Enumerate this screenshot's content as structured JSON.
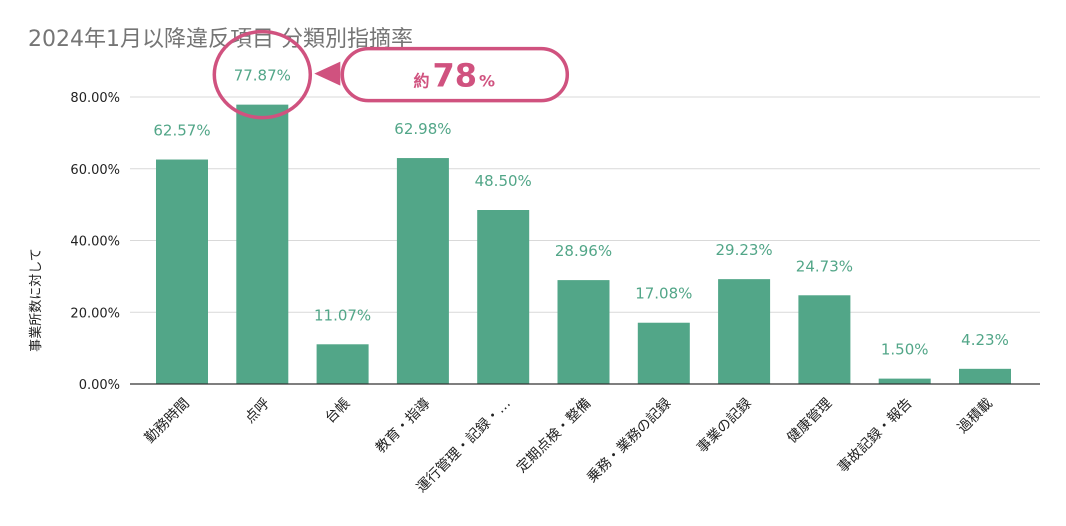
{
  "chart_data": {
    "type": "bar",
    "title": "2024年1月以降違反項目 分類別指摘率",
    "ylabel": "事業所数に対して",
    "xlabel": "",
    "ylim": [
      0,
      80
    ],
    "yticks": [
      "0.00%",
      "20.00%",
      "40.00%",
      "60.00%",
      "80.00%"
    ],
    "grid": true,
    "categories": [
      "勤務時間",
      "点呼",
      "台帳",
      "教育・指導",
      "運行管理・記録・…",
      "定期点検・整備",
      "乗務・業務の記録",
      "事業の記録",
      "健康管理",
      "事故記録・報告",
      "過積載"
    ],
    "values": [
      62.57,
      77.87,
      11.07,
      62.98,
      48.5,
      28.96,
      17.08,
      29.23,
      24.73,
      1.5,
      4.23
    ],
    "data_labels": [
      "62.57%",
      "77.87%",
      "11.07%",
      "62.98%",
      "48.50%",
      "28.96%",
      "17.08%",
      "29.23%",
      "24.73%",
      "1.50%",
      "4.23%"
    ],
    "bar_color": "#52a688",
    "label_color": "#52a688",
    "annotation": {
      "target_index": 1,
      "prefix": "約",
      "number": "78",
      "unit": "%",
      "color": "#d0527f"
    }
  }
}
